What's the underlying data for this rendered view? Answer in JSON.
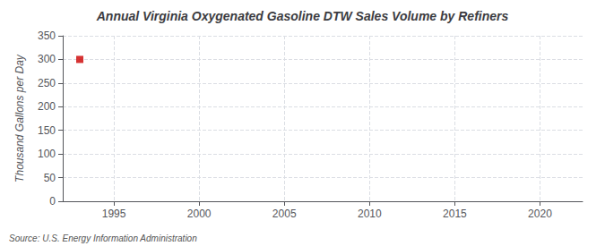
{
  "chart_data": {
    "type": "scatter",
    "title": "Annual Virginia Oxygenated Gasoline DTW Sales Volume by Refiners",
    "ylabel": "Thousand Gallons per Day",
    "source": "Source: U.S. Energy Information Administration",
    "x": [
      1993
    ],
    "values": [
      300
    ],
    "color": "#cc0000",
    "marker": "square",
    "xlim": [
      1992.0,
      2022.5
    ],
    "xticks": [
      1995,
      2000,
      2005,
      2010,
      2015,
      2020
    ],
    "ylim": [
      0,
      350
    ],
    "yticks": [
      0,
      50,
      100,
      150,
      200,
      250,
      300,
      350
    ],
    "grid": true
  }
}
